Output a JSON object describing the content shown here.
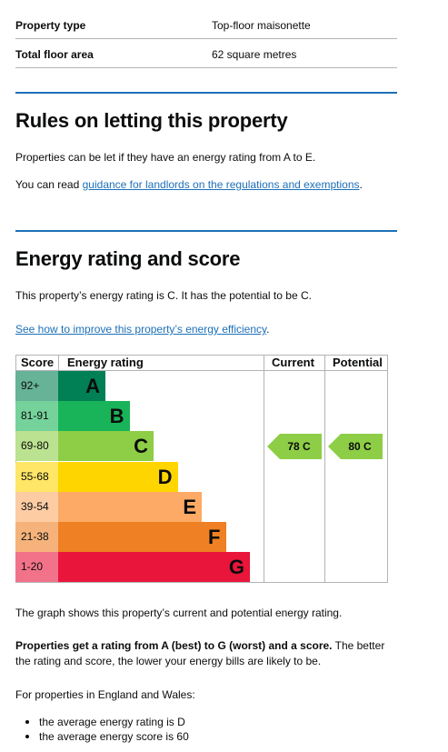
{
  "summary": {
    "rows": [
      {
        "key": "Property type",
        "value": "Top-floor maisonette"
      },
      {
        "key": "Total floor area",
        "value": "62 square metres"
      }
    ]
  },
  "letting": {
    "heading": "Rules on letting this property",
    "para1": "Properties can be let if they have an energy rating from A to E.",
    "para2_prefix": "You can read ",
    "para2_link": "guidance for landlords on the regulations and exemptions",
    "para2_suffix": "."
  },
  "energy": {
    "heading": "Energy rating and score",
    "rating_text": "This property’s energy rating is C. It has the potential to be C.",
    "improve_link": "See how to improve this property’s energy efficiency",
    "improve_suffix": ".",
    "graph_caption": "The graph shows this property’s current and potential energy rating.",
    "explain_bold": "Properties get a rating from A (best) to G (worst) and a score.",
    "explain_rest": " The better the rating and score, the lower your energy bills are likely to be.",
    "england_wales": "For properties in England and Wales:",
    "bullets": [
      "the average energy rating is D",
      "the average energy score is 60"
    ]
  },
  "chart_data": {
    "type": "bar",
    "headers": {
      "score": "Score",
      "rating": "Energy rating",
      "current": "Current",
      "potential": "Potential"
    },
    "bands": [
      {
        "score": "92+",
        "letter": "A",
        "color": "#008054",
        "score_bg": "#66b398"
      },
      {
        "score": "81-91",
        "letter": "B",
        "color": "#19b459",
        "score_bg": "#75d29b"
      },
      {
        "score": "69-80",
        "letter": "C",
        "color": "#8dce46",
        "score_bg": "#bbe290"
      },
      {
        "score": "55-68",
        "letter": "D",
        "color": "#ffd500",
        "score_bg": "#ffe666"
      },
      {
        "score": "39-54",
        "letter": "E",
        "color": "#fcaa65",
        "score_bg": "#fdcca3"
      },
      {
        "score": "21-38",
        "letter": "F",
        "color": "#ef8023",
        "score_bg": "#f5b37b"
      },
      {
        "score": "1-20",
        "letter": "G",
        "color": "#e9153b",
        "score_bg": "#f27389"
      }
    ],
    "current": {
      "value": 78,
      "band": "C",
      "label": "78 C",
      "color": "#8dce46"
    },
    "potential": {
      "value": 80,
      "band": "C",
      "label": "80 C",
      "color": "#8dce46"
    }
  }
}
